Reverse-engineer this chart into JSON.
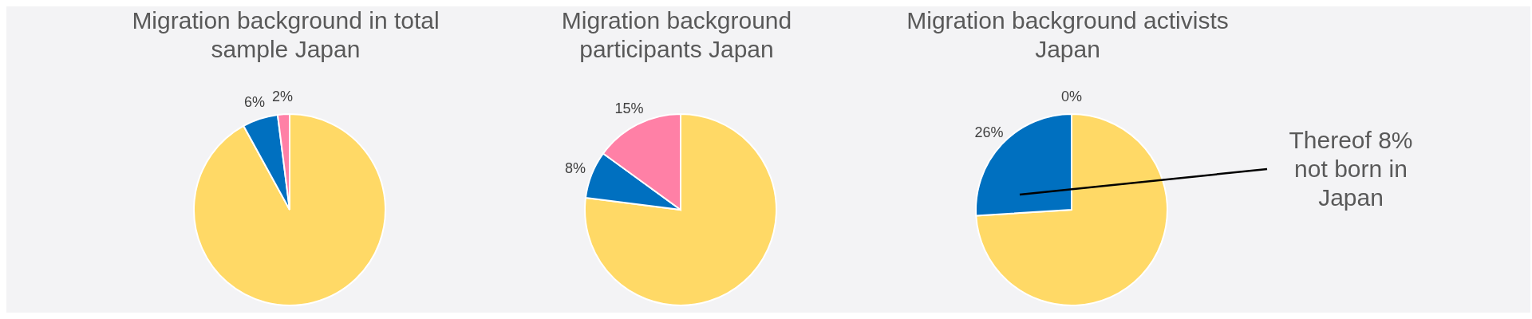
{
  "chart_data": [
    {
      "type": "pie",
      "title": "Migration background in total sample Japan",
      "categories": [
        null,
        null,
        null
      ],
      "values": [
        92,
        6,
        2
      ],
      "colors": [
        "#ffd966",
        "#0070c0",
        "#ff80a6"
      ],
      "value_labels": [
        null,
        "6%",
        "2%"
      ]
    },
    {
      "type": "pie",
      "title": "Migration background participants Japan",
      "categories": [
        null,
        null,
        null
      ],
      "values": [
        77,
        8,
        15
      ],
      "colors": [
        "#ffd966",
        "#0070c0",
        "#ff80a6"
      ],
      "value_labels": [
        null,
        "8%",
        "15%"
      ]
    },
    {
      "type": "pie",
      "title": "Migration background activists Japan",
      "categories": [
        null,
        null,
        null
      ],
      "values": [
        74,
        26,
        0
      ],
      "colors": [
        "#ffd966",
        "#0070c0",
        "#ff80a6"
      ],
      "value_labels": [
        null,
        "26%",
        "0%"
      ],
      "annotations": [
        "Thereof 8% not born in Japan"
      ]
    }
  ]
}
